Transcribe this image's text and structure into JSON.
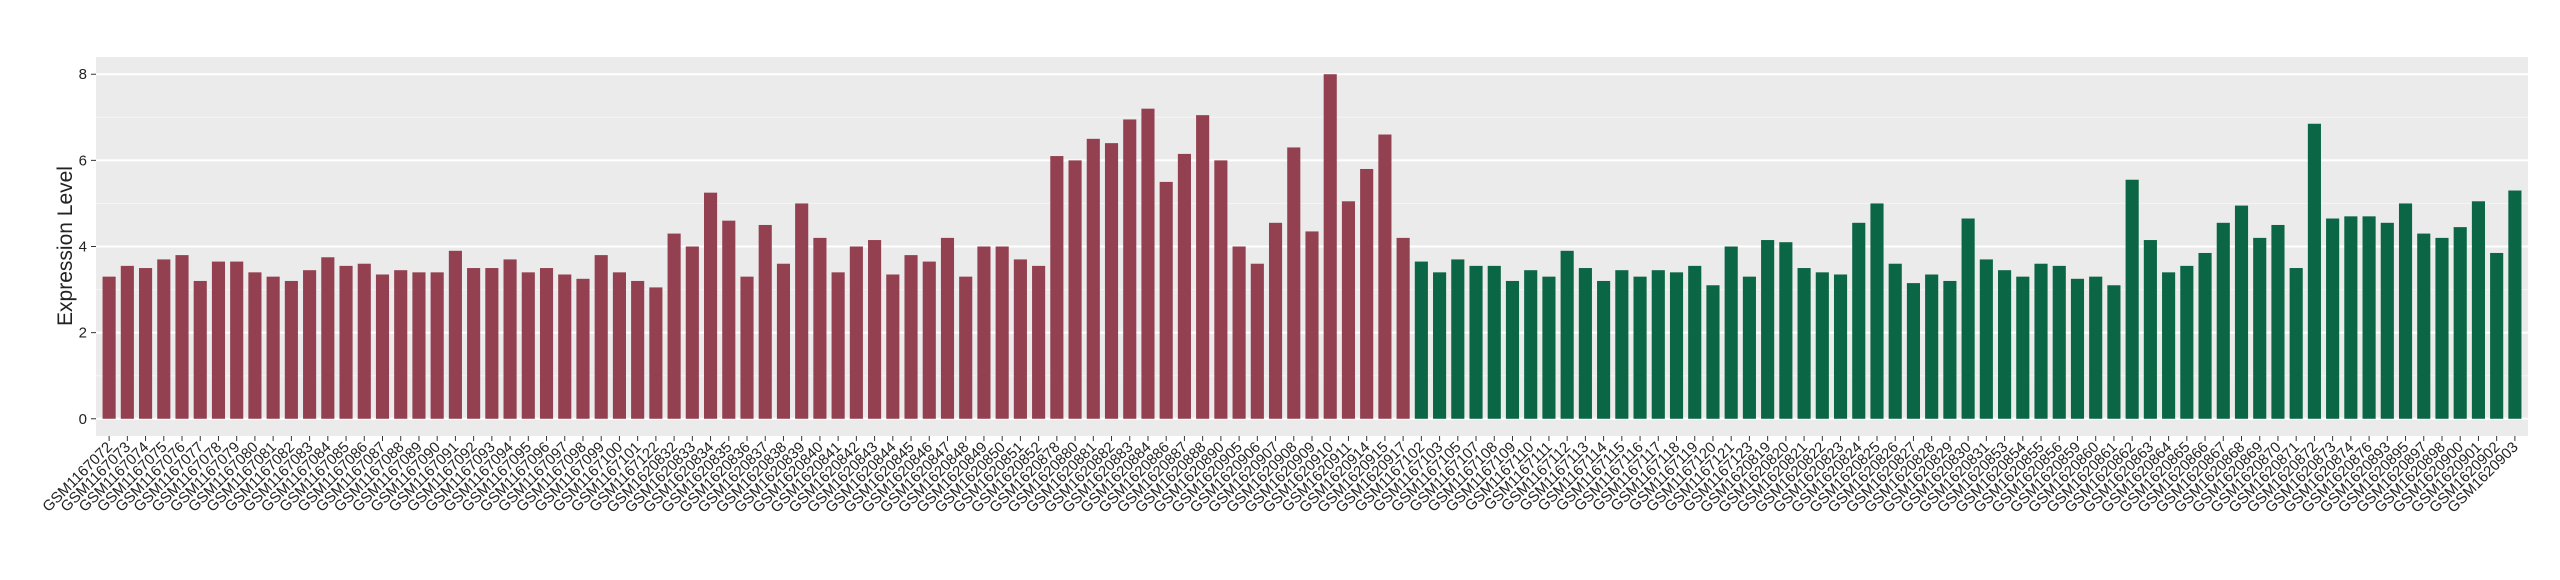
{
  "chart_data": {
    "type": "bar",
    "y_label": "Expression Level",
    "ylim": [
      -0.4,
      8.4
    ],
    "yticks": [
      0,
      2,
      4,
      6,
      8
    ],
    "grid": true,
    "series": [
      {
        "color": "#934150",
        "categories": [
          "GSM1167072",
          "GSM1167073",
          "GSM1167074",
          "GSM1167075",
          "GSM1167076",
          "GSM1167077",
          "GSM1167078",
          "GSM1167079",
          "GSM1167080",
          "GSM1167081",
          "GSM1167082",
          "GSM1167083",
          "GSM1167084",
          "GSM1167085",
          "GSM1167086",
          "GSM1167087",
          "GSM1167088",
          "GSM1167089",
          "GSM1167090",
          "GSM1167091",
          "GSM1167092",
          "GSM1167093",
          "GSM1167094",
          "GSM1167095",
          "GSM1167096",
          "GSM1167097",
          "GSM1167098",
          "GSM1167099",
          "GSM1167100",
          "GSM1167101",
          "GSM1167122",
          "GSM1620832",
          "GSM1620833",
          "GSM1620834",
          "GSM1620835",
          "GSM1620836",
          "GSM1620837",
          "GSM1620838",
          "GSM1620839",
          "GSM1620840",
          "GSM1620841",
          "GSM1620842",
          "GSM1620843",
          "GSM1620844",
          "GSM1620845",
          "GSM1620846",
          "GSM1620847",
          "GSM1620848",
          "GSM1620849",
          "GSM1620850",
          "GSM1620851",
          "GSM1620852",
          "GSM1620878",
          "GSM1620880",
          "GSM1620881",
          "GSM1620882",
          "GSM1620883",
          "GSM1620884",
          "GSM1620886",
          "GSM1620887",
          "GSM1620888",
          "GSM1620890",
          "GSM1620905",
          "GSM1620906",
          "GSM1620907",
          "GSM1620908",
          "GSM1620909",
          "GSM1620910",
          "GSM1620911",
          "GSM1620914",
          "GSM1620915",
          "GSM1620917"
        ],
        "values": [
          3.3,
          3.55,
          3.5,
          3.7,
          3.8,
          3.2,
          3.65,
          3.65,
          3.4,
          3.3,
          3.2,
          3.45,
          3.75,
          3.55,
          3.6,
          3.35,
          3.45,
          3.4,
          3.4,
          3.9,
          3.5,
          3.5,
          3.7,
          3.4,
          3.5,
          3.35,
          3.25,
          3.8,
          3.4,
          3.2,
          3.05,
          4.3,
          4.0,
          5.25,
          4.6,
          3.3,
          4.5,
          3.6,
          5.0,
          4.2,
          3.4,
          4.0,
          4.15,
          3.35,
          3.8,
          3.65,
          4.2,
          3.3,
          4.0,
          4.0,
          3.7,
          3.55,
          6.1,
          6.0,
          6.5,
          6.4,
          6.95,
          7.2,
          5.5,
          6.15,
          7.05,
          6.0,
          4.0,
          3.6,
          4.55,
          6.3,
          4.35,
          8.0,
          5.05,
          5.8,
          6.6,
          4.2
        ]
      },
      {
        "color": "#0b6646",
        "categories": [
          "GSM1167102",
          "GSM1167103",
          "GSM1167105",
          "GSM1167107",
          "GSM1167108",
          "GSM1167109",
          "GSM1167110",
          "GSM1167111",
          "GSM1167112",
          "GSM1167113",
          "GSM1167114",
          "GSM1167115",
          "GSM1167116",
          "GSM1167117",
          "GSM1167118",
          "GSM1167119",
          "GSM1167120",
          "GSM1167121",
          "GSM1167123",
          "GSM1620819",
          "GSM1620820",
          "GSM1620821",
          "GSM1620822",
          "GSM1620823",
          "GSM1620824",
          "GSM1620825",
          "GSM1620826",
          "GSM1620827",
          "GSM1620828",
          "GSM1620829",
          "GSM1620830",
          "GSM1620831",
          "GSM1620853",
          "GSM1620854",
          "GSM1620855",
          "GSM1620856",
          "GSM1620859",
          "GSM1620860",
          "GSM1620861",
          "GSM1620862",
          "GSM1620863",
          "GSM1620864",
          "GSM1620865",
          "GSM1620866",
          "GSM1620867",
          "GSM1620868",
          "GSM1620869",
          "GSM1620870",
          "GSM1620871",
          "GSM1620872",
          "GSM1620873",
          "GSM1620874",
          "GSM1620876",
          "GSM1620893",
          "GSM1620895",
          "GSM1620897",
          "GSM1620898",
          "GSM1620900",
          "GSM1620901",
          "GSM1620902",
          "GSM1620903"
        ],
        "values": [
          3.65,
          3.4,
          3.7,
          3.55,
          3.55,
          3.2,
          3.45,
          3.3,
          3.9,
          3.5,
          3.2,
          3.45,
          3.3,
          3.45,
          3.4,
          3.55,
          3.1,
          4.0,
          3.3,
          4.15,
          4.1,
          3.5,
          3.4,
          3.35,
          4.55,
          5.0,
          3.6,
          3.15,
          3.35,
          3.2,
          4.65,
          3.7,
          3.45,
          3.3,
          3.6,
          3.55,
          3.25,
          3.3,
          3.1,
          5.55,
          4.15,
          3.4,
          3.55,
          3.85,
          4.55,
          4.95,
          4.2,
          4.5,
          3.5,
          6.85,
          4.65,
          4.7,
          4.7,
          4.55,
          5.0,
          4.3,
          4.2,
          4.45,
          5.05,
          3.85,
          5.3
        ]
      }
    ]
  }
}
